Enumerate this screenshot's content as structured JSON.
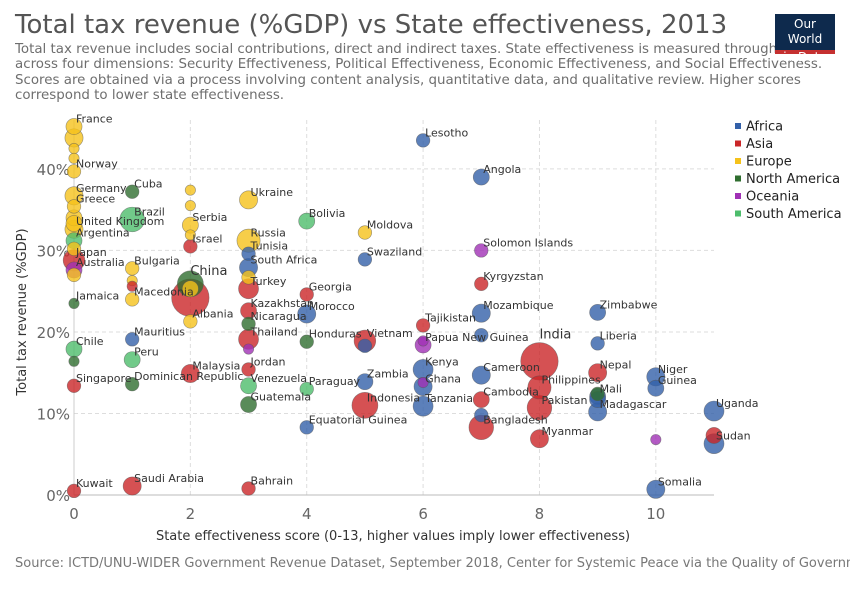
{
  "title": "Total tax revenue (%GDP) vs State effectiveness, 2013",
  "subtitle": "Total tax revenue includes social contributions, direct and indirect taxes. State effectiveness is measured through scores across four dimensions: Security Effectiveness, Political Effectiveness, Economic Effectiveness, and Social Effectiveness. Scores are obtained via a process involving content analysis, quantitative data, and qualitative review. Higher scores correspond to lower state effectiveness.",
  "logo": {
    "line1": "Our World",
    "line2": "in Data"
  },
  "source": "Source: ICTD/UNU-WIDER Government Revenue Dataset, September 2018, Center for Systemic Peace via the Quality of Government",
  "chart_data": {
    "type": "scatter",
    "xlabel": "State effectiveness score (0-13, higher values imply lower effectiveness)",
    "ylabel": "Total tax revenue (%GDP)",
    "xlim": [
      0,
      11
    ],
    "ylim": [
      0,
      46
    ],
    "xticks": [
      {
        "v": 0,
        "label": "0"
      },
      {
        "v": 2,
        "label": "2"
      },
      {
        "v": 4,
        "label": "4"
      },
      {
        "v": 6,
        "label": "6"
      },
      {
        "v": 8,
        "label": "8"
      },
      {
        "v": 10,
        "label": "10"
      }
    ],
    "yticks": [
      {
        "v": 0,
        "label": "0%"
      },
      {
        "v": 10,
        "label": "10%"
      },
      {
        "v": 20,
        "label": "20%"
      },
      {
        "v": 30,
        "label": "30%"
      },
      {
        "v": 40,
        "label": "40%"
      }
    ],
    "grid": true,
    "legend_position": "right",
    "legend": [
      {
        "name": "Africa",
        "color": "#3360a9"
      },
      {
        "name": "Asia",
        "color": "#ca2628"
      },
      {
        "name": "Europe",
        "color": "#f5c21b"
      },
      {
        "name": "North America",
        "color": "#2f6e2f"
      },
      {
        "name": "Oceania",
        "color": "#a031b5"
      },
      {
        "name": "South America",
        "color": "#4dbd6c"
      }
    ],
    "points": [
      {
        "label": "France",
        "region": "Europe",
        "x": 0,
        "y": 45.2,
        "size": 3
      },
      {
        "label": "Norway",
        "region": "Europe",
        "x": 0,
        "y": 39.7,
        "size": 2
      },
      {
        "label": "Germany",
        "region": "Europe",
        "x": 0,
        "y": 36.7,
        "size": 4
      },
      {
        "label": "Greece",
        "region": "Europe",
        "x": 0,
        "y": 35.4,
        "size": 2
      },
      {
        "label": "United Kingdom",
        "region": "Europe",
        "x": 0,
        "y": 32.6,
        "size": 4
      },
      {
        "label": "Argentina",
        "region": "South America",
        "x": 0,
        "y": 31.2,
        "size": 3
      },
      {
        "label": "Japan",
        "region": "Asia",
        "x": 0,
        "y": 28.8,
        "size": 6
      },
      {
        "label": "Australia",
        "region": "Oceania",
        "x": 0,
        "y": 27.6,
        "size": 3
      },
      {
        "label": "Jamaica",
        "region": "North America",
        "x": 0,
        "y": 23.5,
        "size": 1
      },
      {
        "label": "Chile",
        "region": "South America",
        "x": 0,
        "y": 17.9,
        "size": 3
      },
      {
        "label": "Singapore",
        "region": "Asia",
        "x": 0,
        "y": 13.4,
        "size": 2
      },
      {
        "label": "Kuwait",
        "region": "Asia",
        "x": 0,
        "y": 0.5,
        "size": 2
      },
      {
        "label": "Cuba",
        "region": "North America",
        "x": 1,
        "y": 37.2,
        "size": 2
      },
      {
        "label": "Brazil",
        "region": "South America",
        "x": 1,
        "y": 33.8,
        "size": 8
      },
      {
        "label": "Bulgaria",
        "region": "Europe",
        "x": 1,
        "y": 27.8,
        "size": 2
      },
      {
        "label": "Macedonia",
        "region": "Europe",
        "x": 1,
        "y": 24.0,
        "size": 2
      },
      {
        "label": "Mauritius",
        "region": "Africa",
        "x": 1,
        "y": 19.1,
        "size": 2
      },
      {
        "label": "Peru",
        "region": "South America",
        "x": 1,
        "y": 16.6,
        "size": 3
      },
      {
        "label": "Dominican Republic",
        "region": "North America",
        "x": 1,
        "y": 13.6,
        "size": 2
      },
      {
        "label": "Saudi Arabia",
        "region": "Asia",
        "x": 1,
        "y": 1.1,
        "size": 4
      },
      {
        "label": "Serbia",
        "region": "Europe",
        "x": 2,
        "y": 33.1,
        "size": 3
      },
      {
        "label": "Israel",
        "region": "Asia",
        "x": 2,
        "y": 30.5,
        "size": 2
      },
      {
        "label": "China",
        "region": "Asia",
        "x": 2,
        "y": 24.2,
        "size": 20
      },
      {
        "label": "Albania",
        "region": "Europe",
        "x": 2,
        "y": 21.3,
        "size": 2
      },
      {
        "label": "Malaysia",
        "region": "Asia",
        "x": 2,
        "y": 14.9,
        "size": 4
      },
      {
        "label": "Ukraine",
        "region": "Europe",
        "x": 3,
        "y": 36.2,
        "size": 4
      },
      {
        "label": "Russia",
        "region": "Europe",
        "x": 3,
        "y": 31.2,
        "size": 7
      },
      {
        "label": "Tunisia",
        "region": "Africa",
        "x": 3,
        "y": 29.6,
        "size": 2
      },
      {
        "label": "South Africa",
        "region": "Africa",
        "x": 3,
        "y": 27.9,
        "size": 4
      },
      {
        "label": "Turkey",
        "region": "Asia",
        "x": 3,
        "y": 25.3,
        "size": 5
      },
      {
        "label": "Kazakhstan",
        "region": "Asia",
        "x": 3,
        "y": 22.6,
        "size": 3
      },
      {
        "label": "Nicaragua",
        "region": "North America",
        "x": 3,
        "y": 21.0,
        "size": 2
      },
      {
        "label": "Thailand",
        "region": "Asia",
        "x": 3,
        "y": 19.1,
        "size": 5
      },
      {
        "label": "Jordan",
        "region": "Asia",
        "x": 3,
        "y": 15.4,
        "size": 2
      },
      {
        "label": "Venezuela",
        "region": "South America",
        "x": 3,
        "y": 13.4,
        "size": 3
      },
      {
        "label": "Guatemala",
        "region": "North America",
        "x": 3,
        "y": 11.1,
        "size": 3
      },
      {
        "label": "Bahrain",
        "region": "Asia",
        "x": 3,
        "y": 0.8,
        "size": 2
      },
      {
        "label": "Bolivia",
        "region": "South America",
        "x": 4,
        "y": 33.6,
        "size": 3
      },
      {
        "label": "Georgia",
        "region": "Asia",
        "x": 4,
        "y": 24.6,
        "size": 2
      },
      {
        "label": "Morocco",
        "region": "Africa",
        "x": 4,
        "y": 22.2,
        "size": 4
      },
      {
        "label": "Honduras",
        "region": "North America",
        "x": 4,
        "y": 18.8,
        "size": 2
      },
      {
        "label": "Paraguay",
        "region": "South America",
        "x": 4,
        "y": 13.0,
        "size": 2
      },
      {
        "label": "Equatorial Guinea",
        "region": "Africa",
        "x": 4,
        "y": 8.3,
        "size": 2
      },
      {
        "label": "Moldova",
        "region": "Europe",
        "x": 5,
        "y": 32.2,
        "size": 2
      },
      {
        "label": "Swaziland",
        "region": "Africa",
        "x": 5,
        "y": 28.9,
        "size": 2
      },
      {
        "label": "Vietnam",
        "region": "Asia",
        "x": 5,
        "y": 18.9,
        "size": 6
      },
      {
        "label": "Zambia",
        "region": "Africa",
        "x": 5,
        "y": 13.9,
        "size": 3
      },
      {
        "label": "Indonesia",
        "region": "Asia",
        "x": 5,
        "y": 11.0,
        "size": 9
      },
      {
        "label": "Lesotho",
        "region": "Africa",
        "x": 6,
        "y": 43.5,
        "size": 2
      },
      {
        "label": "Tajikistan",
        "region": "Asia",
        "x": 6,
        "y": 20.8,
        "size": 2
      },
      {
        "label": "Papua New Guinea",
        "region": "Oceania",
        "x": 6,
        "y": 18.4,
        "size": 3
      },
      {
        "label": "Kenya",
        "region": "Africa",
        "x": 6,
        "y": 15.4,
        "size": 5
      },
      {
        "label": "Ghana",
        "region": "Africa",
        "x": 6,
        "y": 13.3,
        "size": 4
      },
      {
        "label": "Tanzania",
        "region": "Africa",
        "x": 6,
        "y": 10.9,
        "size": 5
      },
      {
        "label": "Angola",
        "region": "Africa",
        "x": 7,
        "y": 39.0,
        "size": 3
      },
      {
        "label": "Solomon Islands",
        "region": "Oceania",
        "x": 7,
        "y": 30.0,
        "size": 2
      },
      {
        "label": "Kyrgyzstan",
        "region": "Asia",
        "x": 7,
        "y": 25.9,
        "size": 2
      },
      {
        "label": "Mozambique",
        "region": "Africa",
        "x": 7,
        "y": 22.3,
        "size": 4
      },
      {
        "label": "Cameroon",
        "region": "Africa",
        "x": 7,
        "y": 14.7,
        "size": 4
      },
      {
        "label": "Cambodia",
        "region": "Asia",
        "x": 7,
        "y": 11.7,
        "size": 3
      },
      {
        "label": "Bangladesh",
        "region": "Asia",
        "x": 7,
        "y": 8.3,
        "size": 8
      },
      {
        "label": "India",
        "region": "Asia",
        "x": 8,
        "y": 16.4,
        "size": 20
      },
      {
        "label": "Philippines",
        "region": "Asia",
        "x": 8,
        "y": 13.2,
        "size": 7
      },
      {
        "label": "Pakistan",
        "region": "Asia",
        "x": 8,
        "y": 10.7,
        "size": 8
      },
      {
        "label": "Myanmar",
        "region": "Asia",
        "x": 8,
        "y": 6.9,
        "size": 4
      },
      {
        "label": "Zimbabwe",
        "region": "Africa",
        "x": 9,
        "y": 22.4,
        "size": 3
      },
      {
        "label": "Liberia",
        "region": "Africa",
        "x": 9,
        "y": 18.6,
        "size": 2
      },
      {
        "label": "Nepal",
        "region": "Asia",
        "x": 9,
        "y": 15.0,
        "size": 4
      },
      {
        "label": "Mali",
        "region": "Africa",
        "x": 9,
        "y": 12.1,
        "size": 3
      },
      {
        "label": "Madagascar",
        "region": "Africa",
        "x": 9,
        "y": 10.2,
        "size": 4
      },
      {
        "label": "Niger",
        "region": "Africa",
        "x": 10,
        "y": 14.5,
        "size": 4
      },
      {
        "label": "Guinea",
        "region": "Africa",
        "x": 10,
        "y": 13.1,
        "size": 3
      },
      {
        "label": "Somalia",
        "region": "Africa",
        "x": 10,
        "y": 0.7,
        "size": 4
      },
      {
        "label": "Uganda",
        "region": "Africa",
        "x": 11,
        "y": 10.3,
        "size": 5
      },
      {
        "label": "Sudan",
        "region": "Africa",
        "x": 11,
        "y": 6.3,
        "size": 5
      },
      {
        "label": "",
        "region": "Asia",
        "x": 11,
        "y": 7.3,
        "size": 3
      },
      {
        "label": "",
        "region": "Oceania",
        "x": 10,
        "y": 6.8,
        "size": 1
      },
      {
        "label": "",
        "region": "Europe",
        "x": 0,
        "y": 43.8,
        "size": 4
      },
      {
        "label": "",
        "region": "Europe",
        "x": 0,
        "y": 42.5,
        "size": 1
      },
      {
        "label": "",
        "region": "Europe",
        "x": 0,
        "y": 41.3,
        "size": 1
      },
      {
        "label": "",
        "region": "Europe",
        "x": 0,
        "y": 34.0,
        "size": 3
      },
      {
        "label": "",
        "region": "Europe",
        "x": 0,
        "y": 33.3,
        "size": 3
      },
      {
        "label": "",
        "region": "Europe",
        "x": 0,
        "y": 30.2,
        "size": 2
      },
      {
        "label": "",
        "region": "Europe",
        "x": 0,
        "y": 27.0,
        "size": 2
      },
      {
        "label": "",
        "region": "Europe",
        "x": 1,
        "y": 26.3,
        "size": 1
      },
      {
        "label": "",
        "region": "Asia",
        "x": 1,
        "y": 25.6,
        "size": 1
      },
      {
        "label": "",
        "region": "North America",
        "x": 0,
        "y": 16.4,
        "size": 1
      },
      {
        "label": "",
        "region": "Europe",
        "x": 2,
        "y": 37.4,
        "size": 1
      },
      {
        "label": "",
        "region": "Europe",
        "x": 2,
        "y": 35.5,
        "size": 1
      },
      {
        "label": "",
        "region": "Europe",
        "x": 2,
        "y": 31.9,
        "size": 1
      },
      {
        "label": "",
        "region": "Europe",
        "x": 3,
        "y": 26.7,
        "size": 2
      },
      {
        "label": "",
        "region": "Oceania",
        "x": 3,
        "y": 17.9,
        "size": 1
      },
      {
        "label": "",
        "region": "North America",
        "x": 2,
        "y": 25.9,
        "size": 9
      },
      {
        "label": "",
        "region": "Europe",
        "x": 2,
        "y": 25.3,
        "size": 3
      },
      {
        "label": "",
        "region": "Oceania",
        "x": 6,
        "y": 18.9,
        "size": 1
      },
      {
        "label": "",
        "region": "Africa",
        "x": 7,
        "y": 19.6,
        "size": 2
      },
      {
        "label": "",
        "region": "Oceania",
        "x": 6,
        "y": 13.8,
        "size": 1
      },
      {
        "label": "",
        "region": "Africa",
        "x": 5,
        "y": 18.3,
        "size": 2
      },
      {
        "label": "",
        "region": "Africa",
        "x": 7,
        "y": 9.8,
        "size": 2
      },
      {
        "label": "",
        "region": "Africa",
        "x": 9,
        "y": 11.7,
        "size": 3
      },
      {
        "label": "",
        "region": "North America",
        "x": 9,
        "y": 12.4,
        "size": 2
      }
    ]
  }
}
